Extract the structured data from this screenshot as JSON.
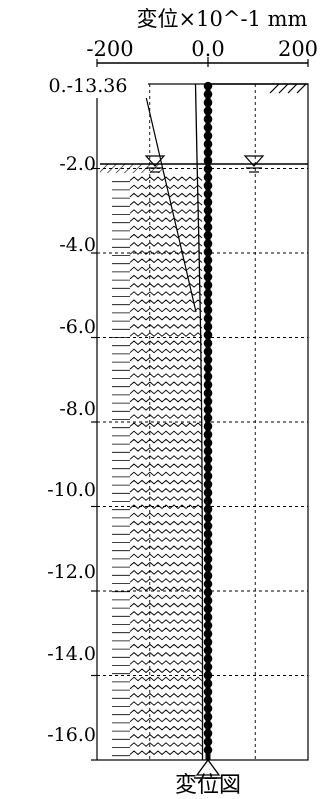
{
  "figure": {
    "top_label": "変位×10^-1 mm",
    "caption": "変位図",
    "value_label": "0.-13.36"
  },
  "chart_data": {
    "type": "line",
    "x_ticks": [
      "-200",
      "0.0",
      "200"
    ],
    "xlim": [
      -200,
      200
    ],
    "y_ticks": [
      "-2.0",
      "-4.0",
      "-6.0",
      "-8.0",
      "-10.0",
      "-12.0",
      "-14.0",
      "-16.0"
    ],
    "ylim": [
      -16.0,
      0.0
    ],
    "grid": true,
    "groundwater_level": -2.0,
    "soil_top_level": -2.0,
    "max_displacement": -13.36,
    "displacement": {
      "depth": [
        0.0,
        -2.0,
        -4.0,
        -6.0,
        -8.0,
        -10.0,
        -12.0,
        -14.0,
        -16.0
      ],
      "x": [
        -13.36,
        -10.0,
        -6.5,
        -3.5,
        -1.5,
        -0.6,
        -0.2,
        -0.05,
        0.0
      ]
    }
  }
}
